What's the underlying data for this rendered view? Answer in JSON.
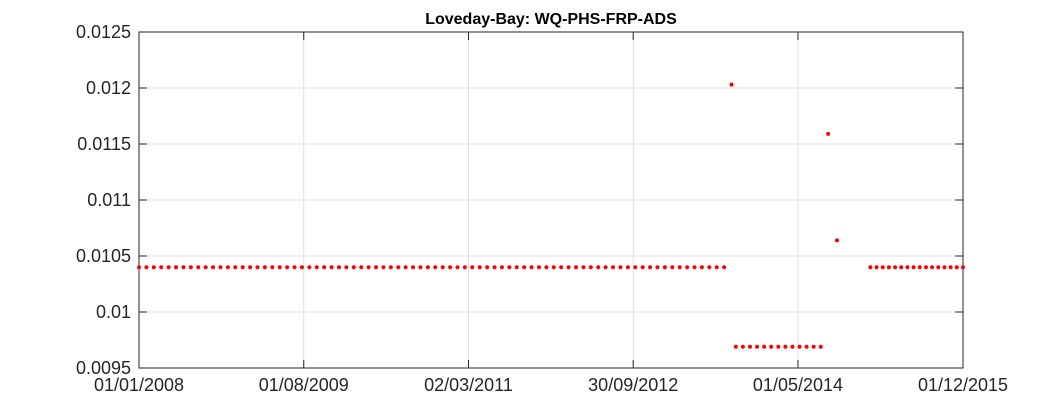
{
  "chart_data": {
    "type": "scatter",
    "title": "Loveday-Bay: WQ-PHS-FRP-ADS",
    "xlabel": "",
    "ylabel": "",
    "xlim": [
      "2008-01-01",
      "2015-12-01"
    ],
    "ylim": [
      0.0095,
      0.0125
    ],
    "grid": true,
    "x_tick_labels": [
      "01/01/2008",
      "01/08/2009",
      "02/03/2011",
      "30/09/2012",
      "01/05/2014",
      "01/12/2015"
    ],
    "y_tick_labels": [
      "0.0095",
      "0.01",
      "0.0105",
      "0.011",
      "0.0115",
      "0.012",
      "0.0125"
    ],
    "marker_color": "#ff0000",
    "series": [
      {
        "segments": [
          {
            "from": "2008-01-01",
            "to": "2013-08-15",
            "value": 0.0104,
            "points": 80
          },
          {
            "from": "2013-09-25",
            "to": "2014-07-20",
            "value": 0.00969,
            "points": 13
          },
          {
            "from": "2015-01-10",
            "to": "2015-12-01",
            "value": 0.0104,
            "points": 16
          }
        ],
        "points": [
          {
            "x": "2013-09-10",
            "y": 0.01203
          },
          {
            "x": "2014-08-15",
            "y": 0.01159
          },
          {
            "x": "2014-09-15",
            "y": 0.01064
          }
        ]
      }
    ]
  }
}
